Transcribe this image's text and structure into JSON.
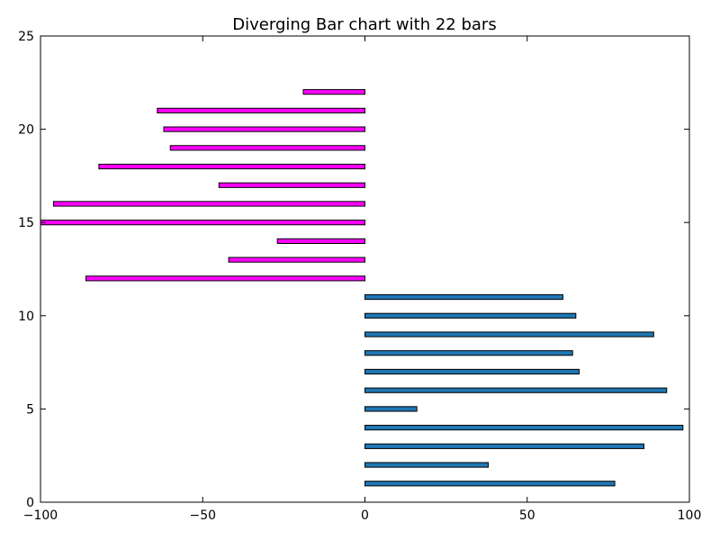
{
  "chart_data": {
    "type": "bar",
    "orientation": "horizontal",
    "title": "Diverging Bar chart with 22 bars",
    "xlabel": "",
    "ylabel": "",
    "xlim": [
      -100,
      100
    ],
    "ylim": [
      0,
      25
    ],
    "x_ticks": [
      -100,
      -50,
      0,
      50,
      100
    ],
    "x_tick_labels": [
      "−100",
      "−50",
      "0",
      "50",
      "100"
    ],
    "y_ticks": [
      0,
      5,
      10,
      15,
      20,
      25
    ],
    "y_tick_labels": [
      "0",
      "5",
      "10",
      "15",
      "20",
      "25"
    ],
    "grid": false,
    "bar_height": 0.25,
    "series": [
      {
        "color": "#1f77b4",
        "y": [
          1,
          2,
          3,
          4,
          5,
          6,
          7,
          8,
          9,
          10,
          11
        ],
        "values": [
          77,
          38,
          86,
          98,
          16,
          93,
          66,
          64,
          89,
          65,
          61
        ]
      },
      {
        "color": "#ff00ff",
        "y": [
          12,
          13,
          14,
          15,
          16,
          17,
          18,
          19,
          20,
          21,
          22
        ],
        "values": [
          -86,
          -42,
          -27,
          -100,
          -96,
          -45,
          -82,
          -60,
          -62,
          -64,
          -19
        ]
      }
    ]
  }
}
